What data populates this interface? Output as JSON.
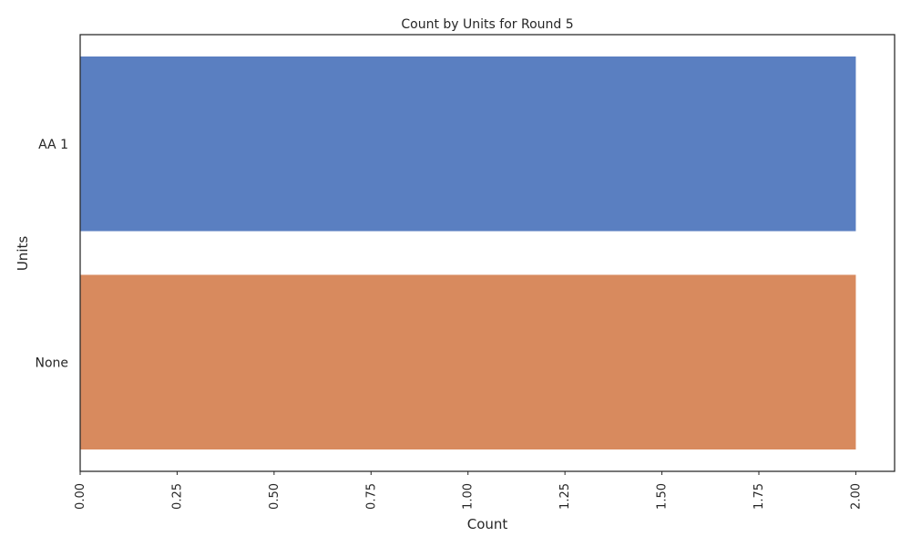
{
  "chart_data": {
    "type": "bar",
    "orientation": "horizontal",
    "title": "Count by Units for Round 5",
    "xlabel": "Count",
    "ylabel": "Units",
    "categories": [
      "AA 1",
      "None"
    ],
    "values": [
      2,
      2
    ],
    "colors": [
      "#5a7fc1",
      "#d88a5e"
    ],
    "xlim": [
      0,
      2.1
    ],
    "xticks": [
      0.0,
      0.25,
      0.5,
      0.75,
      1.0,
      1.25,
      1.5,
      1.75,
      2.0
    ],
    "xtick_labels": [
      "0.00",
      "0.25",
      "0.50",
      "0.75",
      "1.00",
      "1.25",
      "1.50",
      "1.75",
      "2.00"
    ],
    "xtick_rotation": "vertical",
    "grid": false,
    "legend": "none"
  }
}
